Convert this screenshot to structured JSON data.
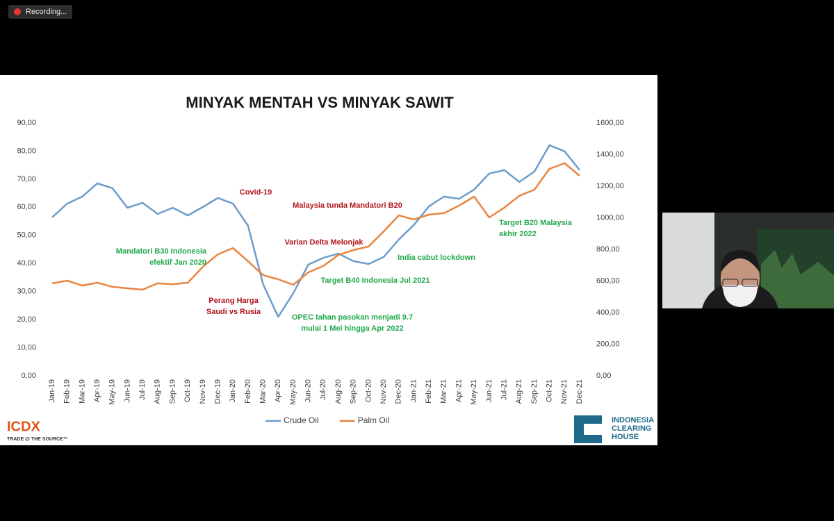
{
  "recording_label": "Recording...",
  "chart_data": {
    "type": "line",
    "title": "MINYAK MENTAH VS MINYAK SAWIT",
    "categories": [
      "Jan-19",
      "Feb-19",
      "Mar-19",
      "Apr-19",
      "May-19",
      "Jun-19",
      "Jul-19",
      "Aug-19",
      "Sep-19",
      "Oct-19",
      "Nov-19",
      "Dec-19",
      "Jan-20",
      "Feb-20",
      "Mar-20",
      "Apr-20",
      "May-20",
      "Jun-20",
      "Jul-20",
      "Aug-20",
      "Sep-20",
      "Oct-20",
      "Nov-20",
      "Dec-20",
      "Jan-21",
      "Feb-21",
      "Mar-21",
      "Apr-21",
      "May-21",
      "Jun-21",
      "Jul-21",
      "Aug-21",
      "Sep-21",
      "Oct-21",
      "Nov-21",
      "Dec-21"
    ],
    "series": [
      {
        "name": "Crude Oil",
        "color": "#6c9ccb",
        "axis": "y",
        "values": [
          56.4,
          61.3,
          63.8,
          68.5,
          66.8,
          59.8,
          61.6,
          57.6,
          59.8,
          57.1,
          60.1,
          63.3,
          61.3,
          53.4,
          32.6,
          21.0,
          29.4,
          39.6,
          42.0,
          43.5,
          40.8,
          39.8,
          42.3,
          48.5,
          53.7,
          60.3,
          63.8,
          63.0,
          66.3,
          72.0,
          73.2,
          69.0,
          72.7,
          82.1,
          79.9,
          73.2
        ]
      },
      {
        "name": "Palm Oil",
        "color": "#e9843f",
        "axis": "y2",
        "values": [
          585,
          602,
          571,
          589,
          563,
          554,
          545,
          585,
          580,
          589,
          690,
          769,
          809,
          725,
          637,
          611,
          576,
          655,
          695,
          765,
          796,
          818,
          914,
          1015,
          989,
          1020,
          1029,
          1077,
          1134,
          1002,
          1064,
          1139,
          1178,
          1310,
          1345,
          1266
        ]
      }
    ],
    "ylim": [
      0,
      90
    ],
    "yticks": [
      {
        "value": 0,
        "label": "0,00"
      },
      {
        "value": 10,
        "label": "10,00"
      },
      {
        "value": 20,
        "label": "20,00"
      },
      {
        "value": 30,
        "label": "30,00"
      },
      {
        "value": 40,
        "label": "40,00"
      },
      {
        "value": 50,
        "label": "50,00"
      },
      {
        "value": 60,
        "label": "60,00"
      },
      {
        "value": 70,
        "label": "70,00"
      },
      {
        "value": 80,
        "label": "80,00"
      },
      {
        "value": 90,
        "label": "90,00"
      }
    ],
    "y2lim": [
      0,
      1600
    ],
    "y2ticks": [
      {
        "value": 0,
        "label": "0,00"
      },
      {
        "value": 200,
        "label": "200,00"
      },
      {
        "value": 400,
        "label": "400,00"
      },
      {
        "value": 600,
        "label": "600,00"
      },
      {
        "value": 800,
        "label": "800,00"
      },
      {
        "value": 1000,
        "label": "1000,00"
      },
      {
        "value": 1200,
        "label": "1200,00"
      },
      {
        "value": 1400,
        "label": "1400,00"
      },
      {
        "value": 1600,
        "label": "1600,00"
      }
    ],
    "grid": false,
    "legend": "bottom",
    "annotations": [
      {
        "lines": [
          "Covid-19"
        ],
        "color": "#b0141c"
      },
      {
        "lines": [
          "Malaysia tunda Mandatori B20"
        ],
        "color": "#b0141c"
      },
      {
        "lines": [
          "Varian Delta Melonjak"
        ],
        "color": "#b0141c"
      },
      {
        "lines": [
          "Mandatori B30 Indonesia",
          "efektif Jan 2020"
        ],
        "color": "#1fa84a"
      },
      {
        "lines": [
          "India cabut lockdown"
        ],
        "color": "#1fa84a"
      },
      {
        "lines": [
          "Target B40 Indonesia Jul 2021"
        ],
        "color": "#1fa84a"
      },
      {
        "lines": [
          "Perang Harga",
          "Saudi vs Rusia"
        ],
        "color": "#b0141c"
      },
      {
        "lines": [
          "OPEC tahan pasokan menjadi 9.7",
          "mulai 1 Mei hingga Apr 2022"
        ],
        "color": "#1fa84a"
      },
      {
        "lines": [
          "Target B20 Malaysia",
          "akhir 2022"
        ],
        "color": "#1fa84a"
      }
    ]
  },
  "logos": {
    "left": {
      "name": "ICDX",
      "tagline": "TRADE @ THE SOURCE™"
    },
    "right": {
      "lines": [
        "INDONESIA",
        "CLEARING",
        "HOUSE"
      ]
    }
  }
}
